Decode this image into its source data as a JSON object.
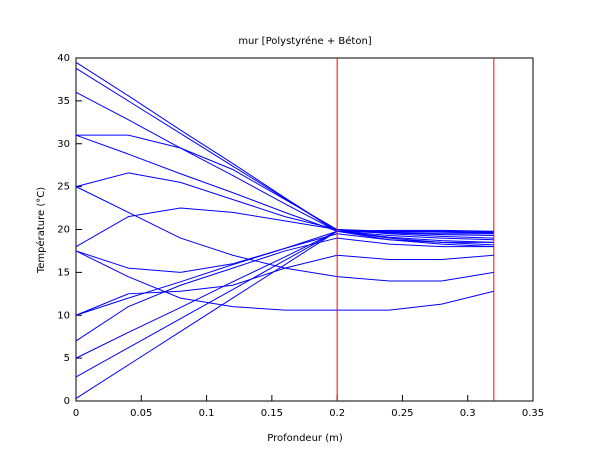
{
  "chart_data": {
    "type": "line",
    "title": "mur [Polystyréne + Béton]",
    "xlabel": "Profondeur (m)",
    "ylabel": "Température (°C)",
    "xlim": [
      0,
      0.35
    ],
    "ylim": [
      0,
      40
    ],
    "xticks": [
      0,
      0.05,
      0.1,
      0.15,
      0.2,
      0.25,
      0.3,
      0.35
    ],
    "yticks": [
      0,
      5,
      10,
      15,
      20,
      25,
      30,
      35,
      40
    ],
    "grid": false,
    "vlines": {
      "x": [
        0.2,
        0.32
      ],
      "color": "#ff0000"
    },
    "x": [
      0,
      0.04,
      0.08,
      0.12,
      0.16,
      0.2,
      0.24,
      0.28,
      0.32
    ],
    "series": [
      {
        "color": "#0000ff",
        "values": [
          39.5,
          35.6,
          31.6,
          27.7,
          23.7,
          19.8,
          19.9,
          19.9,
          19.8
        ]
      },
      {
        "color": "#0000ff",
        "values": [
          38.8,
          35,
          31.2,
          27.4,
          23.6,
          19.8,
          19.8,
          19.8,
          19.7
        ]
      },
      {
        "color": "#0000ff",
        "values": [
          36,
          32.8,
          29.5,
          26.3,
          23,
          19.8,
          19.7,
          19.7,
          19.6
        ]
      },
      {
        "color": "#0000ff",
        "values": [
          31,
          28.8,
          26.5,
          24.3,
          22,
          19.8,
          19.6,
          19.5,
          19.5
        ]
      },
      {
        "color": "#0000ff",
        "values": [
          31,
          31,
          29.5,
          27,
          23.5,
          20,
          19.8,
          19.7,
          19.6
        ]
      },
      {
        "color": "#0000ff",
        "values": [
          25,
          26.6,
          25.5,
          23.5,
          21.5,
          20,
          19.6,
          19.4,
          19.3
        ]
      },
      {
        "color": "#0000ff",
        "values": [
          18,
          21.5,
          22.5,
          22,
          21,
          20,
          19.5,
          19.2,
          19
        ]
      },
      {
        "color": "#0000ff",
        "values": [
          17.5,
          15.5,
          15,
          16,
          17.8,
          19.5,
          18.8,
          18.5,
          18.5
        ]
      },
      {
        "color": "#0000ff",
        "values": [
          10,
          12,
          13.9,
          15.9,
          17.8,
          19.8,
          19.3,
          19,
          18.8
        ]
      },
      {
        "color": "#0000ff",
        "values": [
          7,
          11,
          13.5,
          15.5,
          17.5,
          19,
          18.3,
          18,
          18
        ]
      },
      {
        "color": "#0000ff",
        "values": [
          5,
          8,
          10.9,
          13.9,
          16.8,
          19.8,
          19.1,
          18.7,
          18.5
        ]
      },
      {
        "color": "#0000ff",
        "values": [
          2.8,
          6.2,
          9.6,
          13,
          16.4,
          19.8,
          19,
          18.5,
          18.2
        ]
      },
      {
        "color": "#0000ff",
        "values": [
          0.3,
          4.2,
          8.1,
          12,
          15.9,
          19.8,
          18.8,
          18.3,
          18
        ]
      },
      {
        "color": "#0000ff",
        "values": [
          10,
          12.5,
          12.8,
          13.5,
          15.5,
          17,
          16.5,
          16.5,
          17
        ]
      },
      {
        "color": "#0000ff",
        "values": [
          25,
          22,
          19,
          17,
          15.5,
          14.5,
          14,
          14,
          15
        ]
      },
      {
        "color": "#0000ff",
        "values": [
          17.5,
          14.5,
          12,
          11,
          10.6,
          10.6,
          10.6,
          11.3,
          12.8
        ]
      }
    ]
  }
}
